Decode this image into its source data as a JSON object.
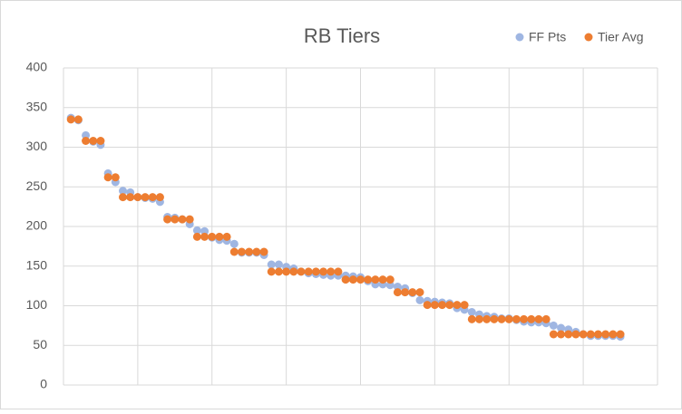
{
  "chart_data": {
    "type": "scatter",
    "title": "RB Tiers",
    "x": [
      1,
      2,
      3,
      4,
      5,
      6,
      7,
      8,
      9,
      10,
      11,
      12,
      13,
      14,
      15,
      16,
      17,
      18,
      19,
      20,
      21,
      22,
      23,
      24,
      25,
      26,
      27,
      28,
      29,
      30,
      31,
      32,
      33,
      34,
      35,
      36,
      37,
      38,
      39,
      40,
      41,
      42,
      43,
      44,
      45,
      46,
      47,
      48,
      49,
      50,
      51,
      52,
      53,
      54,
      55,
      56,
      57,
      58,
      59,
      60,
      61,
      62,
      63,
      64,
      65,
      66,
      67,
      68,
      69,
      70,
      71,
      72,
      73,
      74,
      75
    ],
    "series": [
      {
        "name": "FF Pts",
        "color": "#9fb6e2",
        "values": [
          337,
          334,
          315,
          307,
          303,
          267,
          256,
          245,
          243,
          237,
          236,
          235,
          231,
          212,
          211,
          209,
          203,
          195,
          194,
          186,
          183,
          182,
          178,
          167,
          167,
          167,
          164,
          152,
          152,
          149,
          147,
          143,
          141,
          140,
          139,
          138,
          138,
          138,
          137,
          136,
          131,
          127,
          127,
          126,
          124,
          122,
          116,
          107,
          106,
          105,
          104,
          103,
          97,
          95,
          92,
          89,
          87,
          86,
          84,
          84,
          82,
          80,
          79,
          79,
          78,
          75,
          72,
          70,
          67,
          64,
          62,
          62,
          62,
          62,
          61
        ]
      },
      {
        "name": "Tier Avg",
        "color": "#ed7d31",
        "values": [
          335,
          335,
          308,
          308,
          308,
          262,
          262,
          237,
          237,
          237,
          237,
          237,
          237,
          209,
          209,
          209,
          209,
          187,
          187,
          187,
          187,
          187,
          168,
          168,
          168,
          168,
          168,
          143,
          143,
          143,
          143,
          143,
          143,
          143,
          143,
          143,
          143,
          133,
          133,
          133,
          133,
          133,
          133,
          133,
          117,
          117,
          117,
          117,
          101,
          101,
          101,
          101,
          101,
          101,
          83,
          83,
          83,
          83,
          83,
          83,
          83,
          83,
          83,
          83,
          83,
          64,
          64,
          64,
          64,
          64,
          64,
          64,
          64,
          64,
          64
        ]
      }
    ],
    "xlim": [
      0,
      80
    ],
    "xticks": [
      10,
      20,
      30,
      40,
      50,
      60,
      70,
      80
    ],
    "xtick_labels": false,
    "ylim": [
      0,
      400
    ],
    "yticks": [
      0,
      50,
      100,
      150,
      200,
      250,
      300,
      350,
      400
    ],
    "grid": true
  }
}
